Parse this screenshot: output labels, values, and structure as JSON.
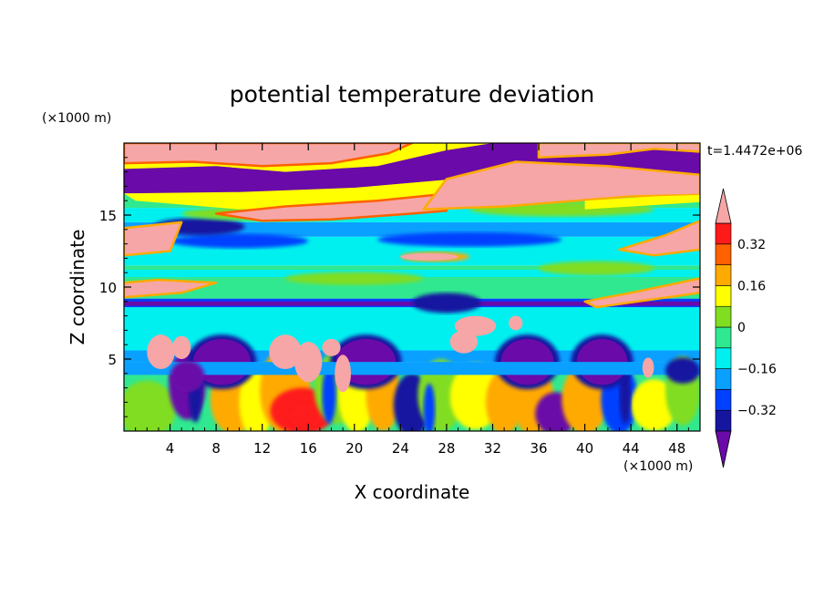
{
  "chart_data": {
    "type": "heatmap",
    "title": "potential temperature deviation",
    "xlabel": "X coordinate",
    "ylabel": "Z coordinate",
    "x_unit": "(×1000 m)",
    "y_unit": "(×1000 m)",
    "time_label": "t=1.4472e+06",
    "xlim": [
      0,
      50
    ],
    "ylim": [
      0,
      20
    ],
    "x_ticks": [
      4,
      8,
      12,
      16,
      20,
      24,
      28,
      32,
      36,
      40,
      44,
      48
    ],
    "y_ticks": [
      5,
      10,
      15
    ],
    "x_tick_labels": [
      "4",
      "8",
      "12",
      "16",
      "20",
      "24",
      "28",
      "32",
      "36",
      "40",
      "44",
      "48"
    ],
    "y_tick_labels": [
      "5",
      "10",
      "15"
    ],
    "colorbar": {
      "levels": [
        -0.4,
        -0.32,
        -0.24,
        -0.16,
        -0.08,
        0,
        0.08,
        0.16,
        0.24,
        0.32,
        0.4
      ],
      "tick_labels": [
        "0.32",
        "0.16",
        "0",
        "−0.16",
        "−0.32"
      ],
      "tick_values": [
        0.32,
        0.16,
        0,
        -0.16,
        -0.32
      ],
      "colors": [
        "#6a0aa8",
        "#1515a0",
        "#0040ff",
        "#0aa0ff",
        "#00f0f0",
        "#30e890",
        "#80dd20",
        "#ffff00",
        "#ffaa00",
        "#ff6000",
        "#ff1a1a",
        "#f6a6a6"
      ],
      "extend": "both"
    },
    "grid": false,
    "legend": "right"
  }
}
